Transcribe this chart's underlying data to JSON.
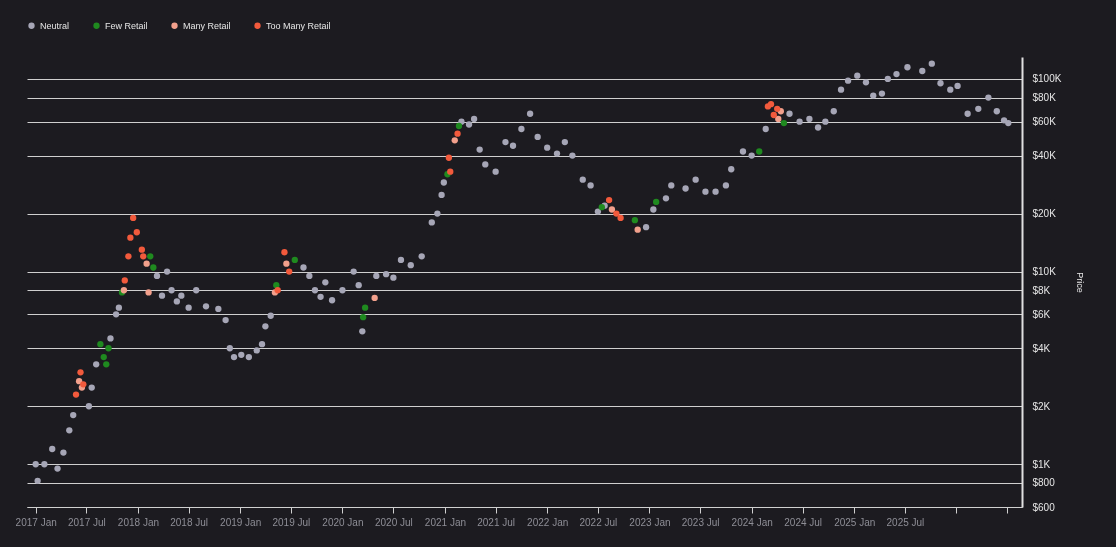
{
  "chart_data": {
    "type": "scatter",
    "ylabel": "Price",
    "log": "y",
    "grid": "y",
    "legend": "top",
    "marker": "circle",
    "xlim": [
      "2016-12-01",
      "2026-08-23"
    ],
    "xticks": [
      {
        "value": "2017-01",
        "label": "2017 Jan"
      },
      {
        "value": "2017-07",
        "label": "2017 Jul"
      },
      {
        "value": "2018-01",
        "label": "2018 Jan"
      },
      {
        "value": "2018-07",
        "label": "2018 Jul"
      },
      {
        "value": "2019-01",
        "label": "2019 Jan"
      },
      {
        "value": "2019-07",
        "label": "2019 Jul"
      },
      {
        "value": "2020-01",
        "label": "2020 Jan"
      },
      {
        "value": "2020-07",
        "label": "2020 Jul"
      },
      {
        "value": "2021-01",
        "label": "2021 Jan"
      },
      {
        "value": "2021-07",
        "label": "2021 Jul"
      },
      {
        "value": "2022-01",
        "label": "2022 Jan"
      },
      {
        "value": "2022-07",
        "label": "2022 Jul"
      },
      {
        "value": "2023-01",
        "label": "2023 Jan"
      },
      {
        "value": "2023-07",
        "label": "2023 Jul"
      },
      {
        "value": "2024-01",
        "label": "2024 Jan"
      },
      {
        "value": "2024-07",
        "label": "2024 Jul"
      },
      {
        "value": "2025-01",
        "label": "2025 Jan"
      },
      {
        "value": "2025-07",
        "label": "2025 Jul"
      },
      {
        "value": "2026-01",
        "label": null
      },
      {
        "value": "2026-07",
        "label": null
      }
    ],
    "ylim": [
      600,
      130000
    ],
    "yticks": [
      {
        "value": 600,
        "label": "$600"
      },
      {
        "value": 800,
        "label": "$800"
      },
      {
        "value": 1000,
        "label": "$1K"
      },
      {
        "value": 2000,
        "label": "$2K"
      },
      {
        "value": 4000,
        "label": "$4K"
      },
      {
        "value": 6000,
        "label": "$6K"
      },
      {
        "value": 8000,
        "label": "$8K"
      },
      {
        "value": 10000,
        "label": "$10K"
      },
      {
        "value": 20000,
        "label": "$20K"
      },
      {
        "value": 40000,
        "label": "$40K"
      },
      {
        "value": 60000,
        "label": "$60K"
      },
      {
        "value": 80000,
        "label": "$80K"
      },
      {
        "value": 100000,
        "label": "$100K"
      }
    ],
    "series": [
      {
        "name": "Neutral",
        "color": "#a6a6b6",
        "x": [
          "2017-01-01",
          "2017-01-08",
          "2017-02-01",
          "2017-03-01",
          "2017-03-20",
          "2017-04-10",
          "2017-05-01",
          "2017-05-15",
          "2017-07-10",
          "2017-07-20",
          "2017-08-05",
          "2017-09-25",
          "2017-10-15",
          "2017-10-25",
          "2018-03-10",
          "2018-03-28",
          "2018-04-15",
          "2018-05-01",
          "2018-05-20",
          "2018-06-05",
          "2018-07-01",
          "2018-07-28",
          "2018-09-01",
          "2018-10-15",
          "2018-11-10",
          "2018-11-25",
          "2018-12-10",
          "2019-01-05",
          "2019-02-01",
          "2019-03-01",
          "2019-03-20",
          "2019-04-01",
          "2019-04-20",
          "2019-08-15",
          "2019-09-05",
          "2019-09-25",
          "2019-10-15",
          "2019-11-01",
          "2019-11-25",
          "2020-01-01",
          "2020-02-10",
          "2020-02-28",
          "2020-03-12",
          "2020-05-01",
          "2020-06-05",
          "2020-07-01",
          "2020-07-28",
          "2020-09-01",
          "2020-10-10",
          "2020-11-15",
          "2020-12-05",
          "2020-12-20",
          "2020-12-28",
          "2021-03-01",
          "2021-03-28",
          "2021-04-15",
          "2021-05-05",
          "2021-05-25",
          "2021-07-01",
          "2021-08-05",
          "2021-09-01",
          "2021-10-01",
          "2021-11-01",
          "2021-11-28",
          "2022-01-01",
          "2022-02-05",
          "2022-03-05",
          "2022-04-01",
          "2022-05-08",
          "2022-06-05",
          "2022-07-01",
          "2022-07-25",
          "2022-12-20",
          "2023-01-15",
          "2023-03-01",
          "2023-03-20",
          "2023-05-10",
          "2023-06-15",
          "2023-07-20",
          "2023-08-25",
          "2023-10-01",
          "2023-10-20",
          "2023-12-01",
          "2024-01-01",
          "2024-02-20",
          "2024-05-15",
          "2024-06-20",
          "2024-07-25",
          "2024-08-25",
          "2024-09-20",
          "2024-10-20",
          "2024-11-15",
          "2024-12-10",
          "2025-01-12",
          "2025-02-12",
          "2025-03-10",
          "2025-04-10",
          "2025-05-01",
          "2025-06-01",
          "2025-07-10",
          "2025-09-01",
          "2025-10-05",
          "2025-11-05",
          "2025-12-10",
          "2026-01-05",
          "2026-02-10",
          "2026-03-20",
          "2026-04-25",
          "2026-05-25",
          "2026-06-20",
          "2026-07-05"
        ],
        "values": [
          1000,
          820,
          1000,
          1200,
          950,
          1150,
          1500,
          1800,
          2000,
          2500,
          3300,
          4500,
          6000,
          6500,
          9500,
          7500,
          10000,
          8000,
          7000,
          7500,
          6500,
          8000,
          6600,
          6400,
          5600,
          4000,
          3600,
          3700,
          3600,
          3900,
          4200,
          5200,
          5900,
          10500,
          9500,
          8000,
          7400,
          8800,
          7100,
          8000,
          10000,
          8500,
          4900,
          9500,
          9700,
          9300,
          11500,
          10800,
          12000,
          18000,
          20000,
          25000,
          29000,
          60000,
          58000,
          62000,
          43000,
          36000,
          33000,
          47000,
          45000,
          55000,
          66000,
          50000,
          44000,
          41000,
          47000,
          40000,
          30000,
          28000,
          20500,
          22000,
          17000,
          21000,
          24000,
          28000,
          27000,
          30000,
          26000,
          26000,
          28000,
          34000,
          42000,
          40000,
          55000,
          66000,
          60000,
          62000,
          56000,
          60000,
          68000,
          88000,
          98000,
          104000,
          96000,
          82000,
          84000,
          100000,
          106000,
          115000,
          110000,
          120000,
          95000,
          88000,
          92000,
          66000,
          70000,
          80000,
          68000,
          61000,
          59000
        ]
      },
      {
        "name": "Few Retail",
        "color": "#1f8a1f",
        "x": [
          "2017-08-20",
          "2017-09-01",
          "2017-09-10",
          "2017-09-18",
          "2017-11-05",
          "2018-02-14",
          "2018-02-25",
          "2019-05-10",
          "2019-07-15",
          "2020-03-15",
          "2020-03-22",
          "2021-01-10",
          "2021-02-20",
          "2022-07-15",
          "2022-11-10",
          "2023-01-25",
          "2024-01-28",
          "2024-04-25"
        ],
        "values": [
          4200,
          3600,
          3300,
          4000,
          7800,
          12000,
          10500,
          8500,
          11500,
          5800,
          6500,
          32000,
          57000,
          21600,
          18500,
          23000,
          42000,
          59000
        ]
      },
      {
        "name": "Many Retail",
        "color": "#f2a08c",
        "x": [
          "2017-06-05",
          "2017-06-15",
          "2017-11-12",
          "2018-02-01",
          "2018-02-08",
          "2019-05-05",
          "2019-06-15",
          "2020-04-25",
          "2021-02-05",
          "2022-08-20",
          "2022-11-20",
          "2024-04-14",
          "2024-04-05"
        ],
        "values": [
          2700,
          2500,
          8000,
          11000,
          7800,
          7800,
          11000,
          7300,
          48000,
          21000,
          16500,
          68000,
          62000
        ]
      },
      {
        "name": "Too Many Retail",
        "color": "#f25a3c",
        "x": [
          "2017-05-25",
          "2017-06-10",
          "2017-06-20",
          "2017-11-15",
          "2017-11-28",
          "2017-12-05",
          "2017-12-15",
          "2017-12-28",
          "2018-01-15",
          "2018-01-20",
          "2019-05-15",
          "2019-06-08",
          "2019-06-25",
          "2021-01-15",
          "2021-01-20",
          "2021-02-15",
          "2022-08-10",
          "2022-09-05",
          "2022-09-20",
          "2024-02-28",
          "2024-03-10",
          "2024-03-20",
          "2024-04-01"
        ],
        "values": [
          2300,
          3000,
          2600,
          9000,
          12000,
          15000,
          19000,
          16000,
          13000,
          12000,
          8000,
          12600,
          10000,
          39000,
          33000,
          52000,
          23500,
          20000,
          19000,
          72000,
          74000,
          65000,
          70000
        ]
      }
    ]
  }
}
